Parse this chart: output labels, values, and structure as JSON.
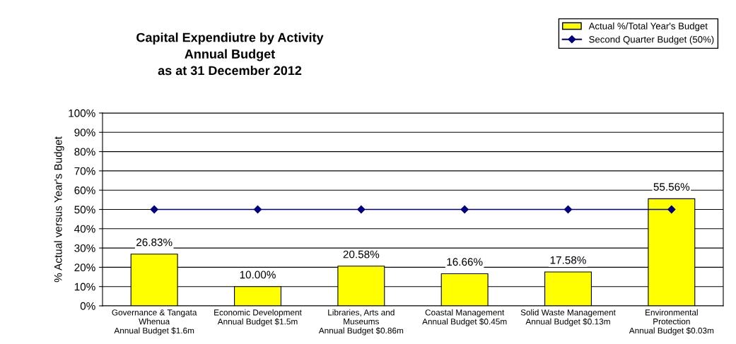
{
  "chart_data": {
    "type": "bar",
    "title": "Capital Expendiutre by Activity\nAnnual Budget\nas at 31 December 2012",
    "ylabel": "% Actual versus Year's Budget",
    "categories": [
      "Governance & Tangata\nWhenua\nAnnual Budget $1.6m",
      "Economic Development\nAnnual Budget $1.5m",
      "Libraries, Arts and\nMuseums\nAnnual Budget $0.86m",
      "Coastal Management\nAnnual Budget $0.45m",
      "Solid Waste Management\nAnnual Budget $0.13m",
      "Environmental\nProtection\nAnnual Budget $0.03m"
    ],
    "series": [
      {
        "name": "Actual %/Total Year's Budget",
        "color": "#ffff00",
        "values": [
          26.83,
          10.0,
          20.58,
          16.66,
          17.58,
          55.56
        ],
        "value_labels": [
          "26.83%",
          "10.00%",
          "20.58%",
          "16.66%",
          "17.58%",
          "55.56%"
        ]
      },
      {
        "name": "Second Quarter Budget (50%)",
        "type": "line",
        "color": "#000080",
        "marker": "diamond",
        "values": [
          50,
          50,
          50,
          50,
          50,
          50
        ]
      }
    ],
    "ylim": [
      0,
      100
    ],
    "yticks": [
      {
        "value": 0,
        "label": "0%"
      },
      {
        "value": 10,
        "label": "10%"
      },
      {
        "value": 20,
        "label": "20%"
      },
      {
        "value": 30,
        "label": "30%"
      },
      {
        "value": 40,
        "label": "40%"
      },
      {
        "value": 50,
        "label": "50%"
      },
      {
        "value": 60,
        "label": "60%"
      },
      {
        "value": 70,
        "label": "70%"
      },
      {
        "value": 80,
        "label": "80%"
      },
      {
        "value": 90,
        "label": "90%"
      },
      {
        "value": 100,
        "label": "100%"
      }
    ],
    "grid": "y",
    "legend": "top right"
  }
}
